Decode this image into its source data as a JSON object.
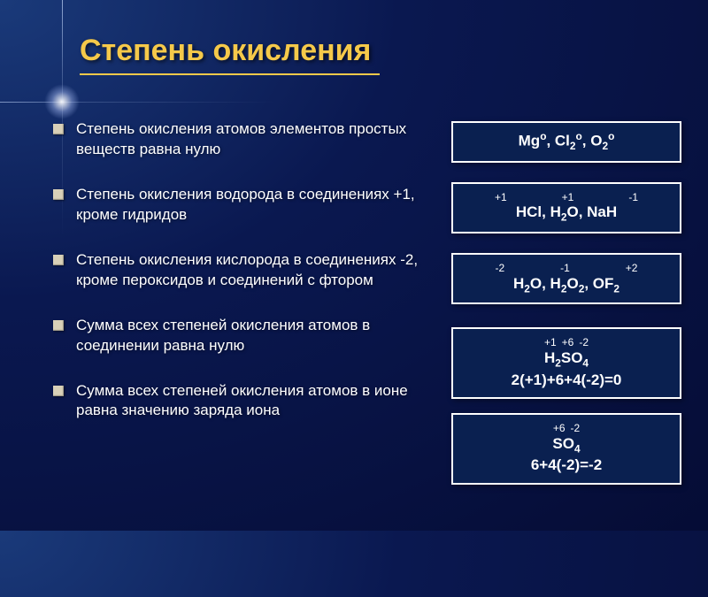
{
  "title": "Степень окисления",
  "bullets": [
    "Степень окисления атомов элементов простых веществ равна нулю",
    "Степень окисления водорода в соединениях +1, кроме гидридов",
    "Степень окисления кислорода в соединениях -2, кроме пероксидов и соединений с фтором",
    "Сумма всех степеней окисления атомов в соединении равна нулю",
    "Сумма всех степеней окисления атомов в ионе равна значению заряда иона"
  ],
  "examples": [
    {
      "sup": "",
      "main_html": "Mg<sup>o</sup>, Cl<sub>2</sub><sup>o</sup>, O<sub>2</sub><sup>o</sup>"
    },
    {
      "sup_items": [
        "+1",
        "+1",
        "-1"
      ],
      "main_html": "HCl, H<sub>2</sub>O, NaH"
    },
    {
      "sup_items": [
        "-2",
        "-1",
        "+2"
      ],
      "main_html": "H<sub>2</sub>O, H<sub>2</sub>O<sub>2</sub>, OF<sub>2</sub>"
    },
    {
      "sup_items_tight": [
        "+1",
        "+6",
        "-2"
      ],
      "main_html": "H<sub>2</sub>SO<sub>4</sub><br>2(+1)+6+4(-2)=0"
    },
    {
      "sup_items_tight": [
        "+6",
        "-2"
      ],
      "main_html": "SO<sub>4</sub><br>6+4(-2)=-2"
    }
  ],
  "style": {
    "title_color": "#f5c94a",
    "title_fontsize": 34,
    "bullet_color": "#d8d0b8",
    "bullet_fontsize": 17,
    "box_bg": "#0a2050",
    "box_border": "#ffffff",
    "box_fontsize": 17,
    "background_gradient": [
      "#1a3a7a",
      "#0a1850",
      "#050c35"
    ]
  }
}
